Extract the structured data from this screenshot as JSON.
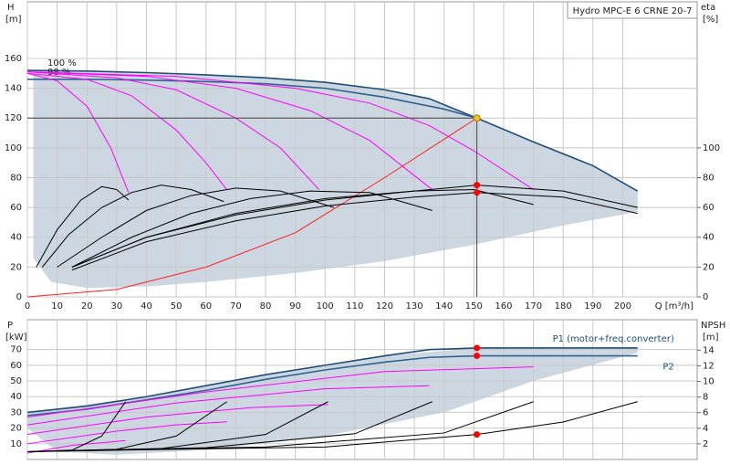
{
  "chart_data": [
    {
      "type": "line",
      "title": "Hydro MPC-E 6 CRNE 20-7",
      "x_label": "Q [m³/h]",
      "y_label": "H",
      "y_unit": "[m]",
      "y2_label": "eta",
      "y2_unit": "[%]",
      "xlim": [
        0,
        225
      ],
      "xticks": [
        0,
        10,
        20,
        30,
        40,
        50,
        60,
        70,
        80,
        90,
        100,
        110,
        120,
        130,
        140,
        150,
        160,
        170,
        180,
        190,
        200
      ],
      "ylim": [
        0,
        198
      ],
      "yticks": [
        0,
        20,
        40,
        60,
        80,
        100,
        120,
        140,
        160
      ],
      "y2lim": [
        0,
        198
      ],
      "y2ticks": [
        0,
        20,
        40,
        60,
        80,
        100
      ],
      "grid": true,
      "area": {
        "color": "#ccd7e2",
        "x": [
          2,
          40,
          80,
          100,
          120,
          135,
          151,
          170,
          190,
          205,
          205,
          180,
          150,
          120,
          90,
          60,
          40,
          20,
          8,
          2,
          2
        ],
        "values": [
          152,
          150,
          147,
          144,
          139,
          133,
          120,
          104,
          88,
          71,
          57,
          48,
          35,
          24,
          16,
          10,
          7,
          6,
          10,
          26,
          122
        ]
      },
      "series": [
        {
          "name": "100 %",
          "color": "#1f4e79",
          "x": [
            0,
            20,
            40,
            60,
            80,
            100,
            120,
            135,
            151,
            170,
            190,
            205
          ],
          "values": [
            152,
            151.5,
            150.5,
            149,
            147,
            144,
            139,
            133,
            120,
            104,
            88,
            71
          ]
        },
        {
          "name": "98 %",
          "color": "#2e6391",
          "x": [
            0,
            20,
            40,
            60,
            80,
            100,
            120,
            140,
            151
          ],
          "values": [
            146,
            146,
            145.5,
            144.5,
            143,
            140,
            134,
            126,
            120
          ]
        },
        {
          "color": "#ff00ff",
          "x": [
            0,
            10,
            20,
            28,
            34
          ],
          "values": [
            150,
            145,
            128,
            100,
            70
          ]
        },
        {
          "color": "#ff00ff",
          "x": [
            0,
            20,
            35,
            50,
            60,
            67
          ],
          "values": [
            150,
            146,
            135,
            112,
            90,
            72
          ]
        },
        {
          "color": "#ff00ff",
          "x": [
            0,
            30,
            50,
            70,
            85,
            98
          ],
          "values": [
            151,
            147,
            139,
            120,
            100,
            72
          ]
        },
        {
          "color": "#ff00ff",
          "x": [
            0,
            40,
            70,
            95,
            115,
            136
          ],
          "values": [
            151,
            148,
            140,
            125,
            105,
            72
          ]
        },
        {
          "color": "#ff00ff",
          "x": [
            0,
            50,
            90,
            115,
            135,
            150,
            170
          ],
          "values": [
            151,
            148,
            140,
            130,
            115,
            98,
            72
          ]
        },
        {
          "color": "#ff2020",
          "x": [
            0,
            30,
            60,
            90,
            120,
            151
          ],
          "values": [
            0,
            5,
            20,
            43,
            80,
            120
          ]
        },
        {
          "color": "#000000",
          "axis": "y2",
          "x": [
            3,
            10,
            18,
            25,
            30,
            34
          ],
          "values": [
            20,
            45,
            65,
            74,
            72,
            65
          ]
        },
        {
          "color": "#000000",
          "axis": "y2",
          "x": [
            5,
            14,
            25,
            35,
            45,
            55,
            66
          ],
          "values": [
            20,
            42,
            60,
            70,
            75,
            72,
            64
          ]
        },
        {
          "color": "#000000",
          "axis": "y2",
          "x": [
            10,
            25,
            40,
            55,
            70,
            85,
            103
          ],
          "values": [
            20,
            40,
            58,
            68,
            73,
            71,
            60
          ]
        },
        {
          "color": "#000000",
          "axis": "y2",
          "x": [
            15,
            35,
            55,
            75,
            95,
            115,
            136
          ],
          "values": [
            20,
            40,
            56,
            66,
            71,
            70,
            58
          ]
        },
        {
          "color": "#000000",
          "axis": "y2",
          "x": [
            15,
            40,
            70,
            100,
            130,
            150,
            170
          ],
          "values": [
            20,
            40,
            56,
            66,
            71,
            72,
            62
          ]
        },
        {
          "color": "#000000",
          "axis": "y2",
          "x": [
            15,
            40,
            70,
            100,
            130,
            151,
            180,
            205
          ],
          "values": [
            20,
            40,
            55,
            65,
            71,
            75,
            71,
            60
          ]
        },
        {
          "color": "#000000",
          "axis": "y2",
          "x": [
            15,
            40,
            70,
            100,
            130,
            151,
            180,
            205
          ],
          "values": [
            18,
            37,
            51,
            61,
            67,
            70,
            67,
            56
          ]
        }
      ],
      "points": [
        {
          "x": 151,
          "y": 120,
          "color": "#f5c518"
        },
        {
          "x": 151,
          "y": 75,
          "axis": "y2",
          "color": "#ff0000"
        },
        {
          "x": 151,
          "y": 70,
          "axis": "y2",
          "color": "#ff0000"
        }
      ]
    },
    {
      "type": "line",
      "y_label": "P",
      "y_unit": "[kW]",
      "y2_label": "NPSH",
      "y2_unit": "[m]",
      "xlim": [
        0,
        225
      ],
      "xticks": [
        0,
        10,
        20,
        30,
        40,
        50,
        60,
        70,
        80,
        90,
        100,
        110,
        120,
        130,
        140,
        150,
        160,
        170,
        180,
        190,
        200
      ],
      "ylim": [
        0,
        89
      ],
      "yticks": [
        10,
        20,
        30,
        40,
        50,
        60,
        70
      ],
      "y2lim": [
        0,
        17.9
      ],
      "y2ticks": [
        2,
        4,
        6,
        8,
        10,
        12,
        14
      ],
      "grid": true,
      "area": {
        "color": "#ccd7e2",
        "x": [
          0,
          40,
          80,
          120,
          151,
          205,
          205,
          170,
          140,
          100,
          60,
          30,
          10,
          0
        ],
        "values": [
          30,
          40,
          54,
          66,
          71,
          71,
          68,
          50,
          30,
          15,
          6,
          3,
          5,
          20
        ]
      },
      "series": [
        {
          "name": "P1 (motor+freq.converter)",
          "color": "#1f4e79",
          "x": [
            0,
            20,
            40,
            60,
            80,
            100,
            120,
            135,
            151,
            170,
            205
          ],
          "values": [
            30,
            34,
            40,
            47,
            54,
            60,
            66,
            70,
            71,
            71,
            71
          ]
        },
        {
          "name": "P2",
          "color": "#2e6391",
          "x": [
            0,
            20,
            40,
            60,
            80,
            100,
            120,
            135,
            151,
            170,
            205
          ],
          "values": [
            28,
            32,
            38,
            44,
            51,
            57,
            62,
            65,
            66,
            66,
            66
          ]
        },
        {
          "color": "#ff00ff",
          "x": [
            0,
            15,
            33
          ],
          "values": [
            4,
            9,
            12
          ]
        },
        {
          "color": "#ff00ff",
          "x": [
            0,
            30,
            50,
            67
          ],
          "values": [
            10,
            18,
            22,
            24
          ]
        },
        {
          "color": "#ff00ff",
          "x": [
            0,
            40,
            75,
            101
          ],
          "values": [
            16,
            27,
            33,
            35
          ]
        },
        {
          "color": "#ff00ff",
          "x": [
            0,
            50,
            100,
            135
          ],
          "values": [
            22,
            36,
            45,
            47
          ]
        },
        {
          "color": "#ff00ff",
          "x": [
            0,
            60,
            120,
            170
          ],
          "values": [
            27,
            43,
            56,
            59
          ]
        },
        {
          "color": "#000000",
          "axis": "y2",
          "x": [
            0,
            15,
            25,
            33
          ],
          "values": [
            1,
            1.2,
            3,
            7.4
          ]
        },
        {
          "color": "#000000",
          "axis": "y2",
          "x": [
            0,
            30,
            50,
            67
          ],
          "values": [
            1,
            1.3,
            3,
            7.4
          ]
        },
        {
          "color": "#000000",
          "axis": "y2",
          "x": [
            0,
            45,
            80,
            101
          ],
          "values": [
            1,
            1.4,
            3.2,
            7.4
          ]
        },
        {
          "color": "#000000",
          "axis": "y2",
          "x": [
            0,
            60,
            110,
            136
          ],
          "values": [
            1,
            1.5,
            3.3,
            7.4
          ]
        },
        {
          "color": "#000000",
          "axis": "y2",
          "x": [
            0,
            80,
            140,
            170
          ],
          "values": [
            1,
            1.6,
            3.4,
            7.4
          ]
        },
        {
          "color": "#000000",
          "axis": "y2",
          "x": [
            0,
            100,
            151,
            180,
            205
          ],
          "values": [
            1,
            1.6,
            3.2,
            4.8,
            7.4
          ]
        }
      ],
      "points": [
        {
          "x": 151,
          "y": 71,
          "color": "#ff0000"
        },
        {
          "x": 151,
          "y": 66,
          "color": "#ff0000"
        },
        {
          "x": 151,
          "y": 3.2,
          "axis": "y2",
          "color": "#ff0000"
        }
      ]
    }
  ]
}
